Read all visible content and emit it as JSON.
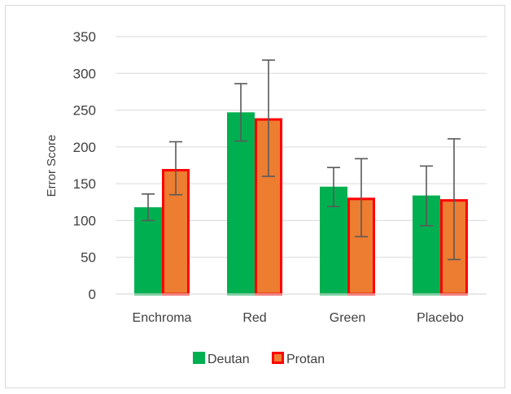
{
  "chart_data": {
    "type": "bar",
    "title": "",
    "xlabel": "",
    "ylabel": "Error Score",
    "ylim": [
      0,
      350
    ],
    "yticks": [
      0,
      50,
      100,
      150,
      200,
      250,
      300,
      350
    ],
    "grid": true,
    "legend_position": "bottom",
    "categories": [
      "Enchroma",
      "Red",
      "Green",
      "Placebo"
    ],
    "series": [
      {
        "name": "Deutan",
        "color": "#00b050",
        "border_color": "#00b050",
        "values": [
          118,
          247,
          146,
          134
        ],
        "error_low": [
          100,
          208,
          119,
          93
        ],
        "error_high": [
          136,
          286,
          172,
          174
        ]
      },
      {
        "name": "Protan",
        "color": "#ed7d31",
        "border_color": "#ff0000",
        "values": [
          170,
          239,
          131,
          129
        ],
        "error_low": [
          135,
          160,
          78,
          47
        ],
        "error_high": [
          207,
          318,
          184,
          211
        ]
      }
    ]
  }
}
